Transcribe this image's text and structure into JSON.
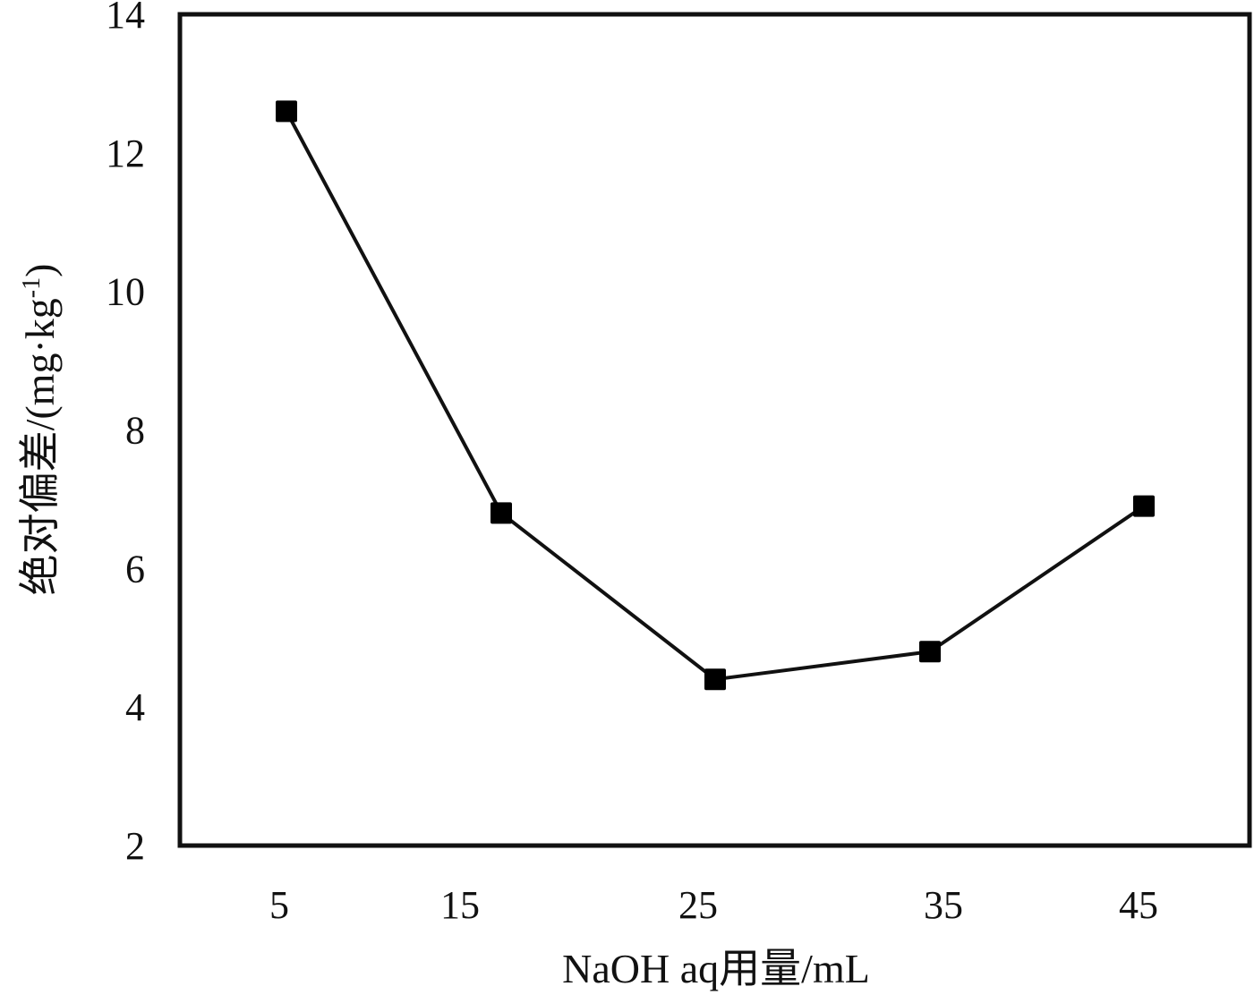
{
  "chart_data": {
    "type": "line",
    "categories": [
      "5",
      "15",
      "25",
      "35",
      "45"
    ],
    "series": [
      {
        "values": [
          12.6,
          6.8,
          4.4,
          4.8,
          6.9
        ]
      }
    ],
    "xlabel": "NaOH aq用量/mL",
    "ylabel": "绝对偏差/(mg·kg",
    "ylabel_superscript": "-1",
    "ylabel_close": ")",
    "ylim": [
      2,
      14
    ],
    "yticks": [
      2,
      4,
      6,
      8,
      10,
      12,
      14
    ],
    "grid": false,
    "legend": "none",
    "marker": "square",
    "line_color": "#111111",
    "marker_color": "#000000"
  }
}
